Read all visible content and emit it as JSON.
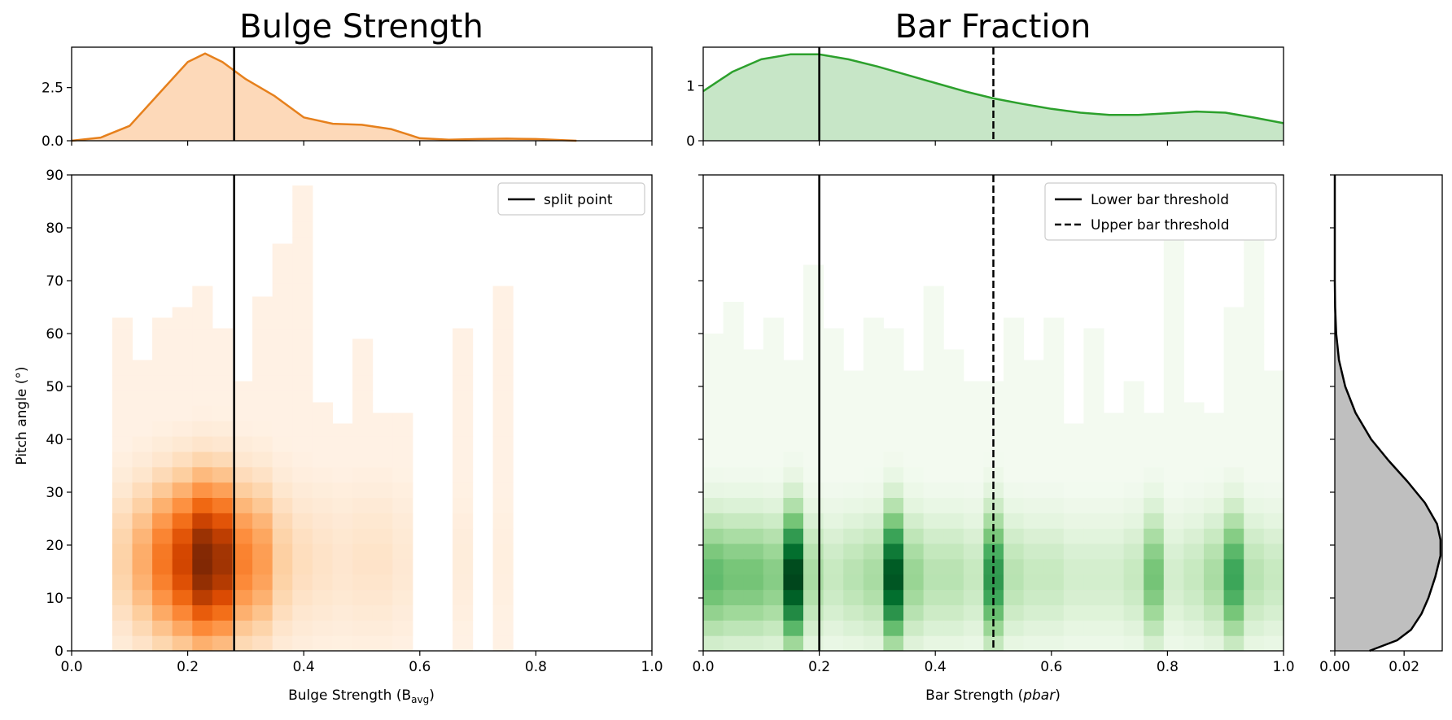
{
  "chart_data": [
    {
      "type": "heatmap",
      "title": "Bulge Strength",
      "xlabel": "Bulge Strength (B",
      "xlabel_sub": "avg",
      "xlabel_end": ")",
      "ylabel": "Pitch angle (°)",
      "xlim": [
        0,
        1
      ],
      "ylim": [
        0,
        90
      ],
      "xticks": [
        "0.0",
        "0.2",
        "0.4",
        "0.6",
        "0.8",
        "1.0"
      ],
      "yticks": [
        "0",
        "10",
        "20",
        "30",
        "40",
        "50",
        "60",
        "70",
        "80",
        "90"
      ],
      "colormap": "Oranges",
      "bin_width": 0.0345,
      "bin_height": 2.9,
      "density_shape": {
        "x_center": 0.23,
        "x_spread": 0.07,
        "y_center": 17,
        "y_spread": 11
      },
      "columns": [
        {
          "x": 0.07,
          "ymax": 63,
          "w": 0.55
        },
        {
          "x": 0.1045,
          "ymax": 55,
          "w": 0.7
        },
        {
          "x": 0.139,
          "ymax": 63,
          "w": 0.8
        },
        {
          "x": 0.1735,
          "ymax": 65,
          "w": 0.85
        },
        {
          "x": 0.208,
          "ymax": 69,
          "w": 1.0
        },
        {
          "x": 0.2425,
          "ymax": 61,
          "w": 0.95
        },
        {
          "x": 0.277,
          "ymax": 51,
          "w": 0.7
        },
        {
          "x": 0.3115,
          "ymax": 67,
          "w": 0.75
        },
        {
          "x": 0.346,
          "ymax": 77,
          "w": 0.55
        },
        {
          "x": 0.3805,
          "ymax": 88,
          "w": 0.45
        },
        {
          "x": 0.415,
          "ymax": 47,
          "w": 0.4
        },
        {
          "x": 0.4495,
          "ymax": 43,
          "w": 0.35
        },
        {
          "x": 0.484,
          "ymax": 59,
          "w": 0.4
        },
        {
          "x": 0.5185,
          "ymax": 45,
          "w": 0.4
        },
        {
          "x": 0.553,
          "ymax": 45,
          "w": 0.3
        },
        {
          "x": 0.6565,
          "ymax": 61,
          "w": 0.2
        },
        {
          "x": 0.726,
          "ymax": 69,
          "w": 0.15
        }
      ],
      "split_point": 0.28,
      "legend": [
        {
          "label": "split point",
          "style": "solid"
        }
      ],
      "legend_position": "top-right",
      "marginal": {
        "type": "area",
        "color": "#e6801c",
        "fill": "#fdd9b9",
        "ylim": [
          0,
          4.4
        ],
        "yticks": [
          "0.0",
          "2.5"
        ],
        "x": [
          0,
          0.05,
          0.1,
          0.15,
          0.2,
          0.23,
          0.26,
          0.3,
          0.35,
          0.4,
          0.45,
          0.5,
          0.55,
          0.6,
          0.65,
          0.7,
          0.75,
          0.8,
          0.87
        ],
        "y": [
          0.0,
          0.15,
          0.7,
          2.2,
          3.7,
          4.1,
          3.7,
          2.9,
          2.1,
          1.1,
          0.8,
          0.75,
          0.55,
          0.12,
          0.05,
          0.08,
          0.1,
          0.08,
          0.0
        ]
      }
    },
    {
      "type": "heatmap",
      "title": "Bar Fraction",
      "xlabel": "Bar Strength (",
      "xlabel_italic": "pbar",
      "xlabel_end": ")",
      "ylabel": "",
      "xlim": [
        0,
        1
      ],
      "ylim": [
        0,
        90
      ],
      "xticks": [
        "0.0",
        "0.2",
        "0.4",
        "0.6",
        "0.8",
        "1.0"
      ],
      "colormap": "Greens",
      "bin_width": 0.0345,
      "bin_height": 2.9,
      "density_shape": {
        "y_center": 14,
        "y_spread": 9
      },
      "columns": [
        {
          "x": 0.0,
          "ymax": 60,
          "w": 0.55
        },
        {
          "x": 0.0345,
          "ymax": 66,
          "w": 0.5
        },
        {
          "x": 0.069,
          "ymax": 57,
          "w": 0.5
        },
        {
          "x": 0.1035,
          "ymax": 63,
          "w": 0.45
        },
        {
          "x": 0.138,
          "ymax": 55,
          "w": 1.0
        },
        {
          "x": 0.1725,
          "ymax": 73,
          "w": 0.35
        },
        {
          "x": 0.207,
          "ymax": 61,
          "w": 0.25
        },
        {
          "x": 0.2415,
          "ymax": 53,
          "w": 0.3
        },
        {
          "x": 0.276,
          "ymax": 63,
          "w": 0.35
        },
        {
          "x": 0.3105,
          "ymax": 61,
          "w": 0.95
        },
        {
          "x": 0.345,
          "ymax": 53,
          "w": 0.4
        },
        {
          "x": 0.3795,
          "ymax": 69,
          "w": 0.3
        },
        {
          "x": 0.414,
          "ymax": 57,
          "w": 0.3
        },
        {
          "x": 0.4485,
          "ymax": 51,
          "w": 0.25
        },
        {
          "x": 0.483,
          "ymax": 51,
          "w": 0.7
        },
        {
          "x": 0.5175,
          "ymax": 63,
          "w": 0.3
        },
        {
          "x": 0.552,
          "ymax": 55,
          "w": 0.25
        },
        {
          "x": 0.5865,
          "ymax": 63,
          "w": 0.25
        },
        {
          "x": 0.621,
          "ymax": 43,
          "w": 0.2
        },
        {
          "x": 0.6555,
          "ymax": 61,
          "w": 0.2
        },
        {
          "x": 0.69,
          "ymax": 45,
          "w": 0.2
        },
        {
          "x": 0.7245,
          "ymax": 51,
          "w": 0.25
        },
        {
          "x": 0.759,
          "ymax": 45,
          "w": 0.5
        },
        {
          "x": 0.7935,
          "ymax": 79,
          "w": 0.2
        },
        {
          "x": 0.828,
          "ymax": 47,
          "w": 0.25
        },
        {
          "x": 0.8625,
          "ymax": 45,
          "w": 0.35
        },
        {
          "x": 0.897,
          "ymax": 65,
          "w": 0.65
        },
        {
          "x": 0.9315,
          "ymax": 79,
          "w": 0.3
        },
        {
          "x": 0.966,
          "ymax": 53,
          "w": 0.25
        }
      ],
      "lower_bar_threshold": 0.2,
      "upper_bar_threshold": 0.5,
      "legend": [
        {
          "label": "Lower bar threshold",
          "style": "solid"
        },
        {
          "label": "Upper bar threshold",
          "style": "dashed"
        }
      ],
      "legend_position": "top-right",
      "marginal": {
        "type": "area",
        "color": "#2ca02c",
        "fill": "#c7e6c7",
        "ylim": [
          0,
          1.7
        ],
        "yticks": [
          "0",
          "1"
        ],
        "x": [
          0,
          0.05,
          0.1,
          0.15,
          0.2,
          0.25,
          0.3,
          0.35,
          0.4,
          0.45,
          0.5,
          0.55,
          0.6,
          0.65,
          0.7,
          0.75,
          0.8,
          0.85,
          0.9,
          0.95,
          1.0
        ],
        "y": [
          0.9,
          1.25,
          1.48,
          1.57,
          1.57,
          1.48,
          1.35,
          1.2,
          1.05,
          0.9,
          0.77,
          0.67,
          0.58,
          0.51,
          0.47,
          0.47,
          0.5,
          0.53,
          0.51,
          0.42,
          0.32
        ]
      }
    },
    {
      "type": "area",
      "orientation": "horizontal",
      "xlim": [
        0,
        0.031
      ],
      "xticks": [
        "0.00",
        "0.02"
      ],
      "ylim": [
        0,
        90
      ],
      "color": "#000000",
      "fill": "#bfbfbf",
      "y": [
        0,
        2,
        4,
        7,
        10,
        14,
        18,
        21,
        24,
        28,
        32,
        36,
        40,
        45,
        50,
        55,
        60,
        65,
        70,
        80,
        90
      ],
      "x": [
        0.01,
        0.018,
        0.022,
        0.025,
        0.027,
        0.029,
        0.0305,
        0.0305,
        0.0295,
        0.026,
        0.021,
        0.0155,
        0.0105,
        0.006,
        0.003,
        0.0012,
        0.0004,
        0.0001,
        0.0,
        0.0,
        0.0
      ]
    }
  ]
}
